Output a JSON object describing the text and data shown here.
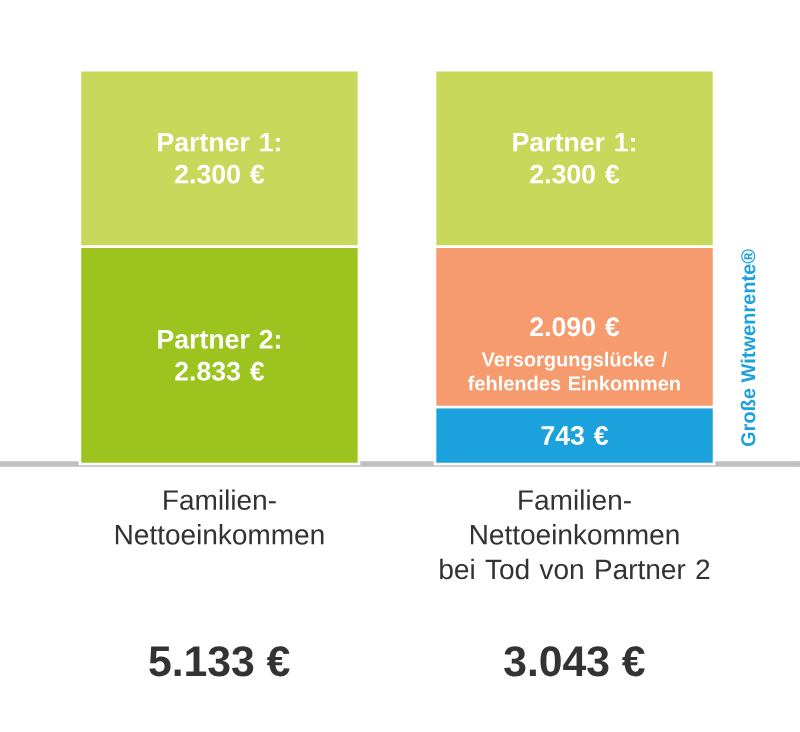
{
  "chart_data": {
    "type": "bar",
    "stacked": true,
    "categories": [
      "Familien-Nettoeinkommen",
      "Familien-Nettoeinkommen bei Tod von Partner 2"
    ],
    "series": [
      {
        "colors": [
          "#9dc31f",
          "#1ba1dc"
        ],
        "values": [
          2833,
          743
        ],
        "value_labels": [
          "Partner 2: 2.833 €",
          "743 €"
        ]
      },
      {
        "color": "#f59b6e",
        "values": [
          null,
          2090
        ],
        "value_labels": [
          null,
          "2.090 €"
        ]
      },
      {
        "color": "#c8d85a",
        "values": [
          2300,
          2300
        ],
        "value_labels": [
          "Partner 1: 2.300 €",
          "Partner 1: 2.300 €"
        ]
      }
    ],
    "annotations": [
      "Versorgungslücke / fehlendes Einkommen",
      "Große Witwenrente®",
      "5.133 €",
      "3.043 €"
    ]
  }
}
